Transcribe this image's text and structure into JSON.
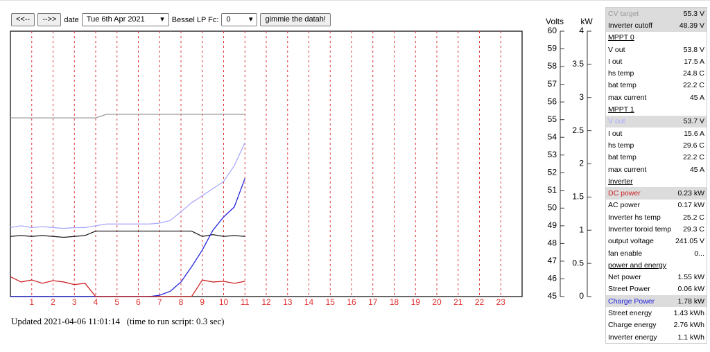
{
  "controls": {
    "prev": "<<--",
    "next": "-->>",
    "date_label": "date",
    "date": "Tue 6th Apr 2021",
    "filter_label": "Bessel LP Fc:",
    "filter": "0",
    "submit": "gimmie the datah!"
  },
  "chart_data": {
    "type": "line",
    "y_label": "Volts",
    "y2_label": "kW",
    "x": [
      0,
      0.5,
      1,
      1.5,
      2,
      2.5,
      3,
      3.5,
      4,
      4.5,
      5,
      5.5,
      6,
      6.5,
      7,
      7.5,
      8,
      8.5,
      9,
      9.5,
      10,
      10.5,
      11
    ],
    "xlim": [
      0,
      24
    ],
    "xticks": [
      1,
      2,
      3,
      4,
      5,
      6,
      7,
      8,
      9,
      10,
      11,
      12,
      13,
      14,
      15,
      16,
      17,
      18,
      19,
      20,
      21,
      22,
      23
    ],
    "ylim": [
      45,
      60
    ],
    "yticks": [
      45,
      46,
      47,
      48,
      49,
      50,
      51,
      52,
      53,
      54,
      55,
      56,
      57,
      58,
      59,
      60
    ],
    "y2lim": [
      0,
      4
    ],
    "y2ticks": [
      0,
      0.5,
      1,
      1.5,
      2,
      2.5,
      3,
      3.5,
      4
    ],
    "grid": true,
    "grid_color": "#e03030",
    "series": [
      {
        "color": "#999999",
        "values": [
          55.1,
          55.1,
          55.1,
          55.1,
          55.1,
          55.1,
          55.1,
          55.1,
          55.1,
          55.3,
          55.3,
          55.3,
          55.3,
          55.3,
          55.3,
          55.3,
          55.3,
          55.3,
          55.3,
          55.3,
          55.3,
          55.3,
          55.3
        ]
      },
      {
        "color": "#aaaaff",
        "values": [
          48.9,
          49.0,
          48.9,
          48.95,
          48.9,
          48.85,
          48.9,
          48.9,
          49.0,
          49.1,
          49.1,
          49.1,
          49.1,
          49.1,
          49.15,
          49.3,
          49.8,
          50.3,
          50.7,
          51.1,
          51.5,
          52.4,
          53.7
        ]
      },
      {
        "color": "#222222",
        "values": [
          48.4,
          48.45,
          48.4,
          48.45,
          48.4,
          48.35,
          48.4,
          48.45,
          48.7,
          48.7,
          48.7,
          48.7,
          48.7,
          48.7,
          48.7,
          48.7,
          48.7,
          48.7,
          48.4,
          48.5,
          48.4,
          48.45,
          48.4
        ]
      },
      {
        "color": "#2222dd",
        "axis": "y2",
        "values": [
          0,
          0,
          0,
          0,
          0,
          0,
          0,
          0,
          0,
          0,
          0,
          0,
          0,
          0,
          0.02,
          0.08,
          0.22,
          0.45,
          0.7,
          1.0,
          1.2,
          1.35,
          1.78
        ]
      },
      {
        "color": "#cc2222",
        "axis": "y2",
        "values": [
          0.3,
          0.22,
          0.25,
          0.2,
          0.24,
          0.22,
          0.18,
          0.2,
          0,
          0,
          0,
          0,
          0,
          0,
          0,
          0,
          0,
          0,
          0.25,
          0.22,
          0.23,
          0.2,
          0.23
        ]
      }
    ]
  },
  "footer": "Updated 2021-04-06 11:01:14   (time to run script: 0.3 sec)",
  "table": {
    "rows": [
      {
        "label": "CV target",
        "value": "55.3 V",
        "color": "#999999"
      },
      {
        "label": "Inverter cutoff",
        "value": "48.39 V",
        "color": "#000000"
      },
      {
        "heading": "MPPT 0"
      },
      {
        "label": "V out",
        "value": "53.8 V"
      },
      {
        "label": "I out",
        "value": "17.5 A"
      },
      {
        "label": "hs temp",
        "value": "24.8 C"
      },
      {
        "label": "bat temp",
        "value": "22.2 C"
      },
      {
        "label": "max current",
        "value": "45 A"
      },
      {
        "heading": "MPPT 1"
      },
      {
        "label": "V out",
        "value": "53.7 V",
        "color": "#aaaaff"
      },
      {
        "label": "I out",
        "value": "15.6 A"
      },
      {
        "label": "hs temp",
        "value": "29.6 C"
      },
      {
        "label": "bat temp",
        "value": "22.2 C"
      },
      {
        "label": "max current",
        "value": "45 A"
      },
      {
        "heading": "Inverter"
      },
      {
        "label": "DC power",
        "value": "0.23 kW",
        "color": "#cc2222"
      },
      {
        "label": "AC power",
        "value": "0.17 kW"
      },
      {
        "label": "Inverter hs temp",
        "value": "25.2 C"
      },
      {
        "label": "Inverter toroid temp",
        "value": "29.3 C"
      },
      {
        "label": "output voltage",
        "value": "241.05 V"
      },
      {
        "label": "fan enable",
        "value": "0..."
      },
      {
        "heading": "power and energy"
      },
      {
        "label": "Net power",
        "value": "1.55 kW"
      },
      {
        "label": "Street Power",
        "value": "0.06 kW"
      },
      {
        "label": "Charge Power",
        "value": "1.78 kW",
        "color": "#2222dd"
      },
      {
        "label": "Street energy",
        "value": "1.43 kWh"
      },
      {
        "label": "Charge energy",
        "value": "2.76 kWh"
      },
      {
        "label": "Inverter energy",
        "value": "1.1 kWh"
      }
    ]
  }
}
